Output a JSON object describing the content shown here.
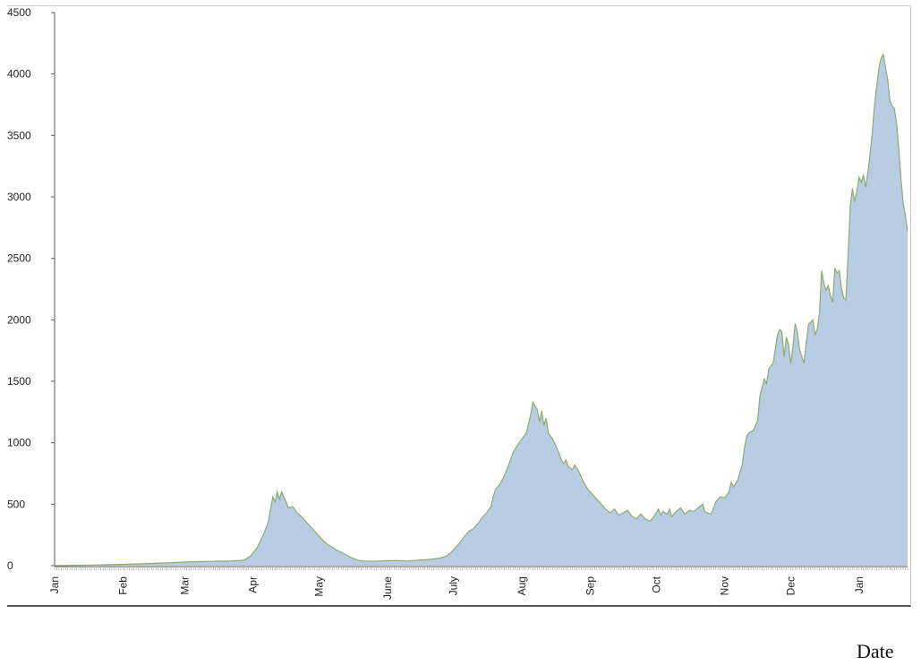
{
  "chart_data": {
    "type": "area",
    "title": "",
    "xlabel": "Date",
    "ylabel": "",
    "ylim": [
      0,
      4500
    ],
    "yticks": [
      0,
      500,
      1000,
      1500,
      2000,
      2500,
      3000,
      3500,
      4000,
      4500
    ],
    "month_labels": [
      "Jan",
      "Feb",
      "Mar",
      "Apr",
      "May",
      "June",
      "July",
      "Aug",
      "Sep",
      "Oct",
      "Nov",
      "Dec",
      "Jan"
    ],
    "grid": false,
    "legend": "none",
    "colors": {
      "fill": "#b8cce4",
      "line": "#8faa6e",
      "axis": "#5a5a5a"
    },
    "series": [
      {
        "points": [
          [
            0,
            0
          ],
          [
            10,
            3
          ],
          [
            20,
            6
          ],
          [
            30,
            10
          ],
          [
            40,
            15
          ],
          [
            50,
            22
          ],
          [
            60,
            30
          ],
          [
            70,
            35
          ],
          [
            80,
            38
          ],
          [
            86,
            45
          ],
          [
            89,
            80
          ],
          [
            92,
            150
          ],
          [
            95,
            260
          ],
          [
            97,
            360
          ],
          [
            98,
            460
          ],
          [
            99,
            560
          ],
          [
            100,
            520
          ],
          [
            101,
            600
          ],
          [
            102,
            540
          ],
          [
            103,
            600
          ],
          [
            104,
            560
          ],
          [
            105,
            520
          ],
          [
            106,
            470
          ],
          [
            108,
            480
          ],
          [
            110,
            430
          ],
          [
            112,
            400
          ],
          [
            114,
            360
          ],
          [
            116,
            320
          ],
          [
            118,
            280
          ],
          [
            120,
            240
          ],
          [
            122,
            200
          ],
          [
            124,
            170
          ],
          [
            126,
            150
          ],
          [
            128,
            125
          ],
          [
            130,
            110
          ],
          [
            132,
            90
          ],
          [
            134,
            70
          ],
          [
            136,
            55
          ],
          [
            138,
            42
          ],
          [
            140,
            38
          ],
          [
            145,
            35
          ],
          [
            150,
            40
          ],
          [
            155,
            42
          ],
          [
            160,
            38
          ],
          [
            165,
            45
          ],
          [
            170,
            50
          ],
          [
            175,
            62
          ],
          [
            178,
            80
          ],
          [
            180,
            110
          ],
          [
            182,
            150
          ],
          [
            184,
            190
          ],
          [
            186,
            240
          ],
          [
            188,
            280
          ],
          [
            190,
            300
          ],
          [
            192,
            340
          ],
          [
            194,
            390
          ],
          [
            196,
            430
          ],
          [
            198,
            480
          ],
          [
            199,
            560
          ],
          [
            200,
            620
          ],
          [
            202,
            660
          ],
          [
            204,
            730
          ],
          [
            206,
            820
          ],
          [
            208,
            920
          ],
          [
            210,
            980
          ],
          [
            212,
            1030
          ],
          [
            214,
            1080
          ],
          [
            215,
            1150
          ],
          [
            216,
            1230
          ],
          [
            217,
            1330
          ],
          [
            218,
            1300
          ],
          [
            219,
            1270
          ],
          [
            220,
            1170
          ],
          [
            221,
            1260
          ],
          [
            222,
            1140
          ],
          [
            223,
            1200
          ],
          [
            224,
            1080
          ],
          [
            226,
            1030
          ],
          [
            228,
            950
          ],
          [
            230,
            860
          ],
          [
            231,
            830
          ],
          [
            232,
            860
          ],
          [
            233,
            810
          ],
          [
            235,
            780
          ],
          [
            236,
            820
          ],
          [
            238,
            760
          ],
          [
            240,
            680
          ],
          [
            242,
            620
          ],
          [
            244,
            580
          ],
          [
            246,
            540
          ],
          [
            248,
            500
          ],
          [
            250,
            460
          ],
          [
            252,
            430
          ],
          [
            254,
            460
          ],
          [
            256,
            410
          ],
          [
            258,
            430
          ],
          [
            260,
            450
          ],
          [
            262,
            400
          ],
          [
            264,
            380
          ],
          [
            266,
            420
          ],
          [
            268,
            380
          ],
          [
            270,
            360
          ],
          [
            272,
            400
          ],
          [
            274,
            460
          ],
          [
            275,
            410
          ],
          [
            276,
            440
          ],
          [
            278,
            420
          ],
          [
            279,
            460
          ],
          [
            280,
            400
          ],
          [
            282,
            440
          ],
          [
            284,
            470
          ],
          [
            286,
            420
          ],
          [
            288,
            450
          ],
          [
            290,
            440
          ],
          [
            292,
            470
          ],
          [
            294,
            500
          ],
          [
            295,
            440
          ],
          [
            296,
            430
          ],
          [
            298,
            420
          ],
          [
            300,
            520
          ],
          [
            302,
            560
          ],
          [
            304,
            550
          ],
          [
            306,
            600
          ],
          [
            307,
            680
          ],
          [
            308,
            640
          ],
          [
            310,
            700
          ],
          [
            311,
            760
          ],
          [
            312,
            820
          ],
          [
            313,
            960
          ],
          [
            314,
            1050
          ],
          [
            315,
            1080
          ],
          [
            317,
            1100
          ],
          [
            319,
            1180
          ],
          [
            320,
            1380
          ],
          [
            321,
            1450
          ],
          [
            322,
            1520
          ],
          [
            323,
            1480
          ],
          [
            324,
            1600
          ],
          [
            326,
            1650
          ],
          [
            328,
            1880
          ],
          [
            329,
            1920
          ],
          [
            330,
            1900
          ],
          [
            331,
            1700
          ],
          [
            332,
            1860
          ],
          [
            333,
            1800
          ],
          [
            334,
            1640
          ],
          [
            335,
            1780
          ],
          [
            336,
            1970
          ],
          [
            337,
            1900
          ],
          [
            338,
            1760
          ],
          [
            339,
            1700
          ],
          [
            340,
            1650
          ],
          [
            342,
            1960
          ],
          [
            344,
            2000
          ],
          [
            345,
            1880
          ],
          [
            346,
            1920
          ],
          [
            347,
            2050
          ],
          [
            348,
            2400
          ],
          [
            349,
            2300
          ],
          [
            350,
            2240
          ],
          [
            351,
            2280
          ],
          [
            352,
            2200
          ],
          [
            353,
            2140
          ],
          [
            354,
            2420
          ],
          [
            355,
            2380
          ],
          [
            356,
            2400
          ],
          [
            357,
            2260
          ],
          [
            358,
            2180
          ],
          [
            359,
            2160
          ],
          [
            360,
            2520
          ],
          [
            361,
            2920
          ],
          [
            362,
            3070
          ],
          [
            363,
            2960
          ],
          [
            364,
            3050
          ],
          [
            365,
            3160
          ],
          [
            366,
            3120
          ],
          [
            367,
            3180
          ],
          [
            368,
            3080
          ],
          [
            369,
            3200
          ],
          [
            370,
            3350
          ],
          [
            371,
            3520
          ],
          [
            372,
            3750
          ],
          [
            373,
            3900
          ],
          [
            374,
            4050
          ],
          [
            375,
            4130
          ],
          [
            376,
            4160
          ],
          [
            377,
            4050
          ],
          [
            378,
            3950
          ],
          [
            379,
            3780
          ],
          [
            380,
            3740
          ],
          [
            381,
            3720
          ],
          [
            382,
            3600
          ],
          [
            383,
            3400
          ],
          [
            384,
            3150
          ],
          [
            385,
            2950
          ],
          [
            386,
            2850
          ],
          [
            387,
            2720
          ]
        ]
      }
    ]
  }
}
